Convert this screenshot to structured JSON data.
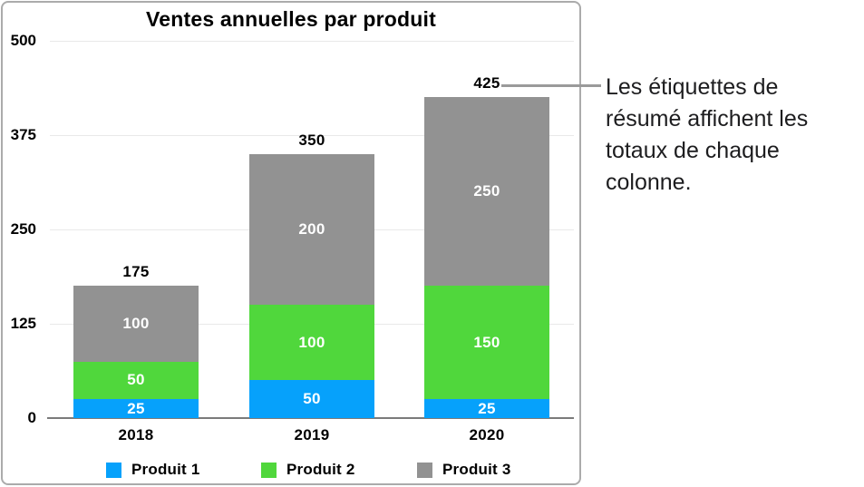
{
  "chart_data": {
    "type": "bar",
    "stacked": true,
    "title": "Ventes annuelles par produit",
    "categories": [
      "2018",
      "2019",
      "2020"
    ],
    "series": [
      {
        "name": "Produit 1",
        "color": "#06A1FB",
        "values": [
          25,
          50,
          25
        ]
      },
      {
        "name": "Produit 2",
        "color": "#50D73C",
        "values": [
          50,
          100,
          150
        ]
      },
      {
        "name": "Produit 3",
        "color": "#929292",
        "values": [
          100,
          200,
          250
        ]
      }
    ],
    "totals": [
      175,
      350,
      425
    ],
    "y_ticks": [
      500,
      375,
      250,
      125,
      0
    ],
    "ylim": [
      0,
      500
    ],
    "grid": true,
    "legend_position": "bottom"
  },
  "callout": {
    "text": "Les étiquettes de résumé affichent les totaux de chaque colonne."
  },
  "colors": {
    "grid": "#E9E9E9",
    "axis": "#7B7B7B",
    "panel_border": "#ABABAB",
    "connector": "#9A9A9A",
    "bar_label": "#FFFFFF",
    "text": "#000000",
    "callout_text": "#1D1D1F"
  }
}
